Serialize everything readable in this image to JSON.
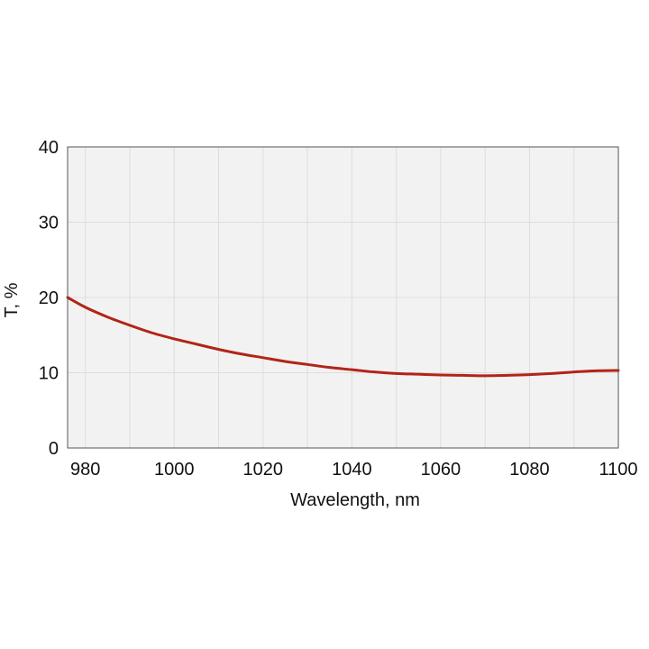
{
  "chart_data": {
    "type": "line",
    "title": "",
    "xlabel": "Wavelength, nm",
    "ylabel": "T, %",
    "xlim": [
      976,
      1100
    ],
    "ylim": [
      0,
      40
    ],
    "x_ticks": [
      980,
      1000,
      1020,
      1040,
      1060,
      1080,
      1100
    ],
    "y_ticks": [
      0,
      10,
      20,
      30,
      40
    ],
    "grid": true,
    "legend": "none",
    "colors": {
      "line": "#b22418",
      "plot_bg": "#f2f2f2",
      "grid": "#dddddd",
      "frame": "#555555"
    },
    "series": [
      {
        "x": [
          976,
          980,
          985,
          990,
          995,
          1000,
          1005,
          1010,
          1015,
          1020,
          1025,
          1030,
          1035,
          1040,
          1045,
          1050,
          1055,
          1060,
          1065,
          1070,
          1075,
          1080,
          1085,
          1090,
          1095,
          1100
        ],
        "y": [
          20.0,
          18.7,
          17.4,
          16.3,
          15.3,
          14.5,
          13.8,
          13.1,
          12.5,
          12.0,
          11.5,
          11.1,
          10.7,
          10.4,
          10.1,
          9.9,
          9.8,
          9.7,
          9.65,
          9.6,
          9.65,
          9.75,
          9.9,
          10.1,
          10.25,
          10.3
        ]
      }
    ]
  }
}
